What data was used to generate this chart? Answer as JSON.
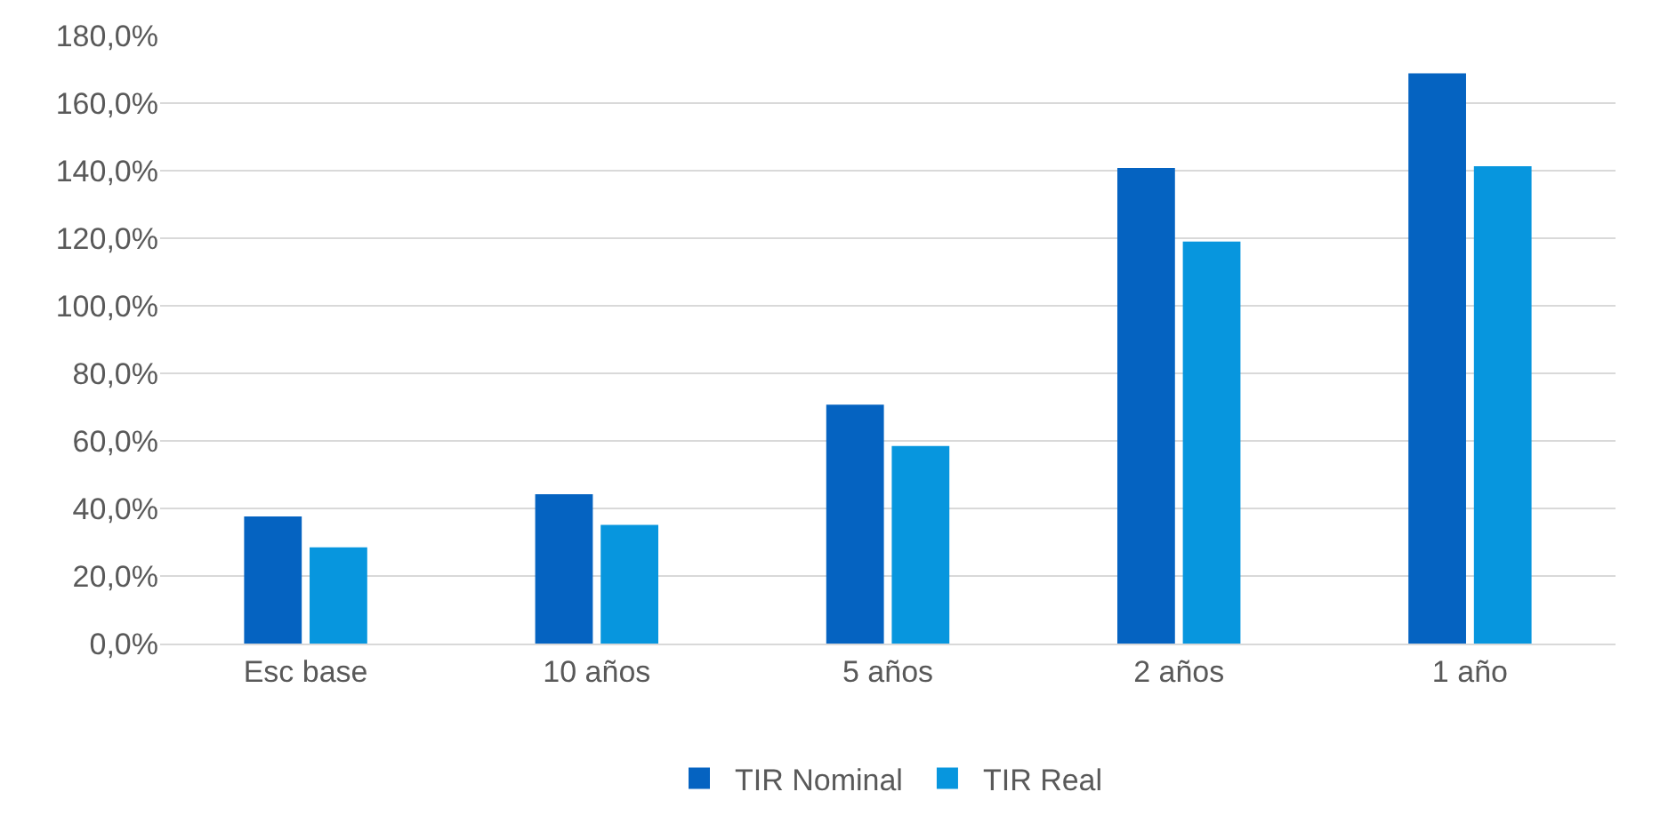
{
  "chart_data": {
    "type": "bar",
    "categories": [
      "Esc base",
      "10 años",
      "5 años",
      "2 años",
      "1 año"
    ],
    "series": [
      {
        "name": "TIR Nominal",
        "color": "#0563c1",
        "values": [
          37.6,
          44.2,
          70.7,
          140.8,
          168.8
        ]
      },
      {
        "name": "TIR Real",
        "color": "#0796de",
        "values": [
          28.5,
          35.1,
          58.5,
          119.0,
          141.3
        ]
      }
    ],
    "ylim": [
      0,
      180
    ],
    "yticks": [
      {
        "value": 0,
        "label": "0,0%"
      },
      {
        "value": 20,
        "label": "20,0%"
      },
      {
        "value": 40,
        "label": "40,0%"
      },
      {
        "value": 60,
        "label": "60,0%"
      },
      {
        "value": 80,
        "label": "80,0%"
      },
      {
        "value": 100,
        "label": "100,0%"
      },
      {
        "value": 120,
        "label": "120,0%"
      },
      {
        "value": 140,
        "label": "140,0%"
      },
      {
        "value": 160,
        "label": "160,0%"
      },
      {
        "value": 180,
        "label": "180,0%"
      }
    ],
    "grid": "y",
    "legend": "bottom"
  }
}
